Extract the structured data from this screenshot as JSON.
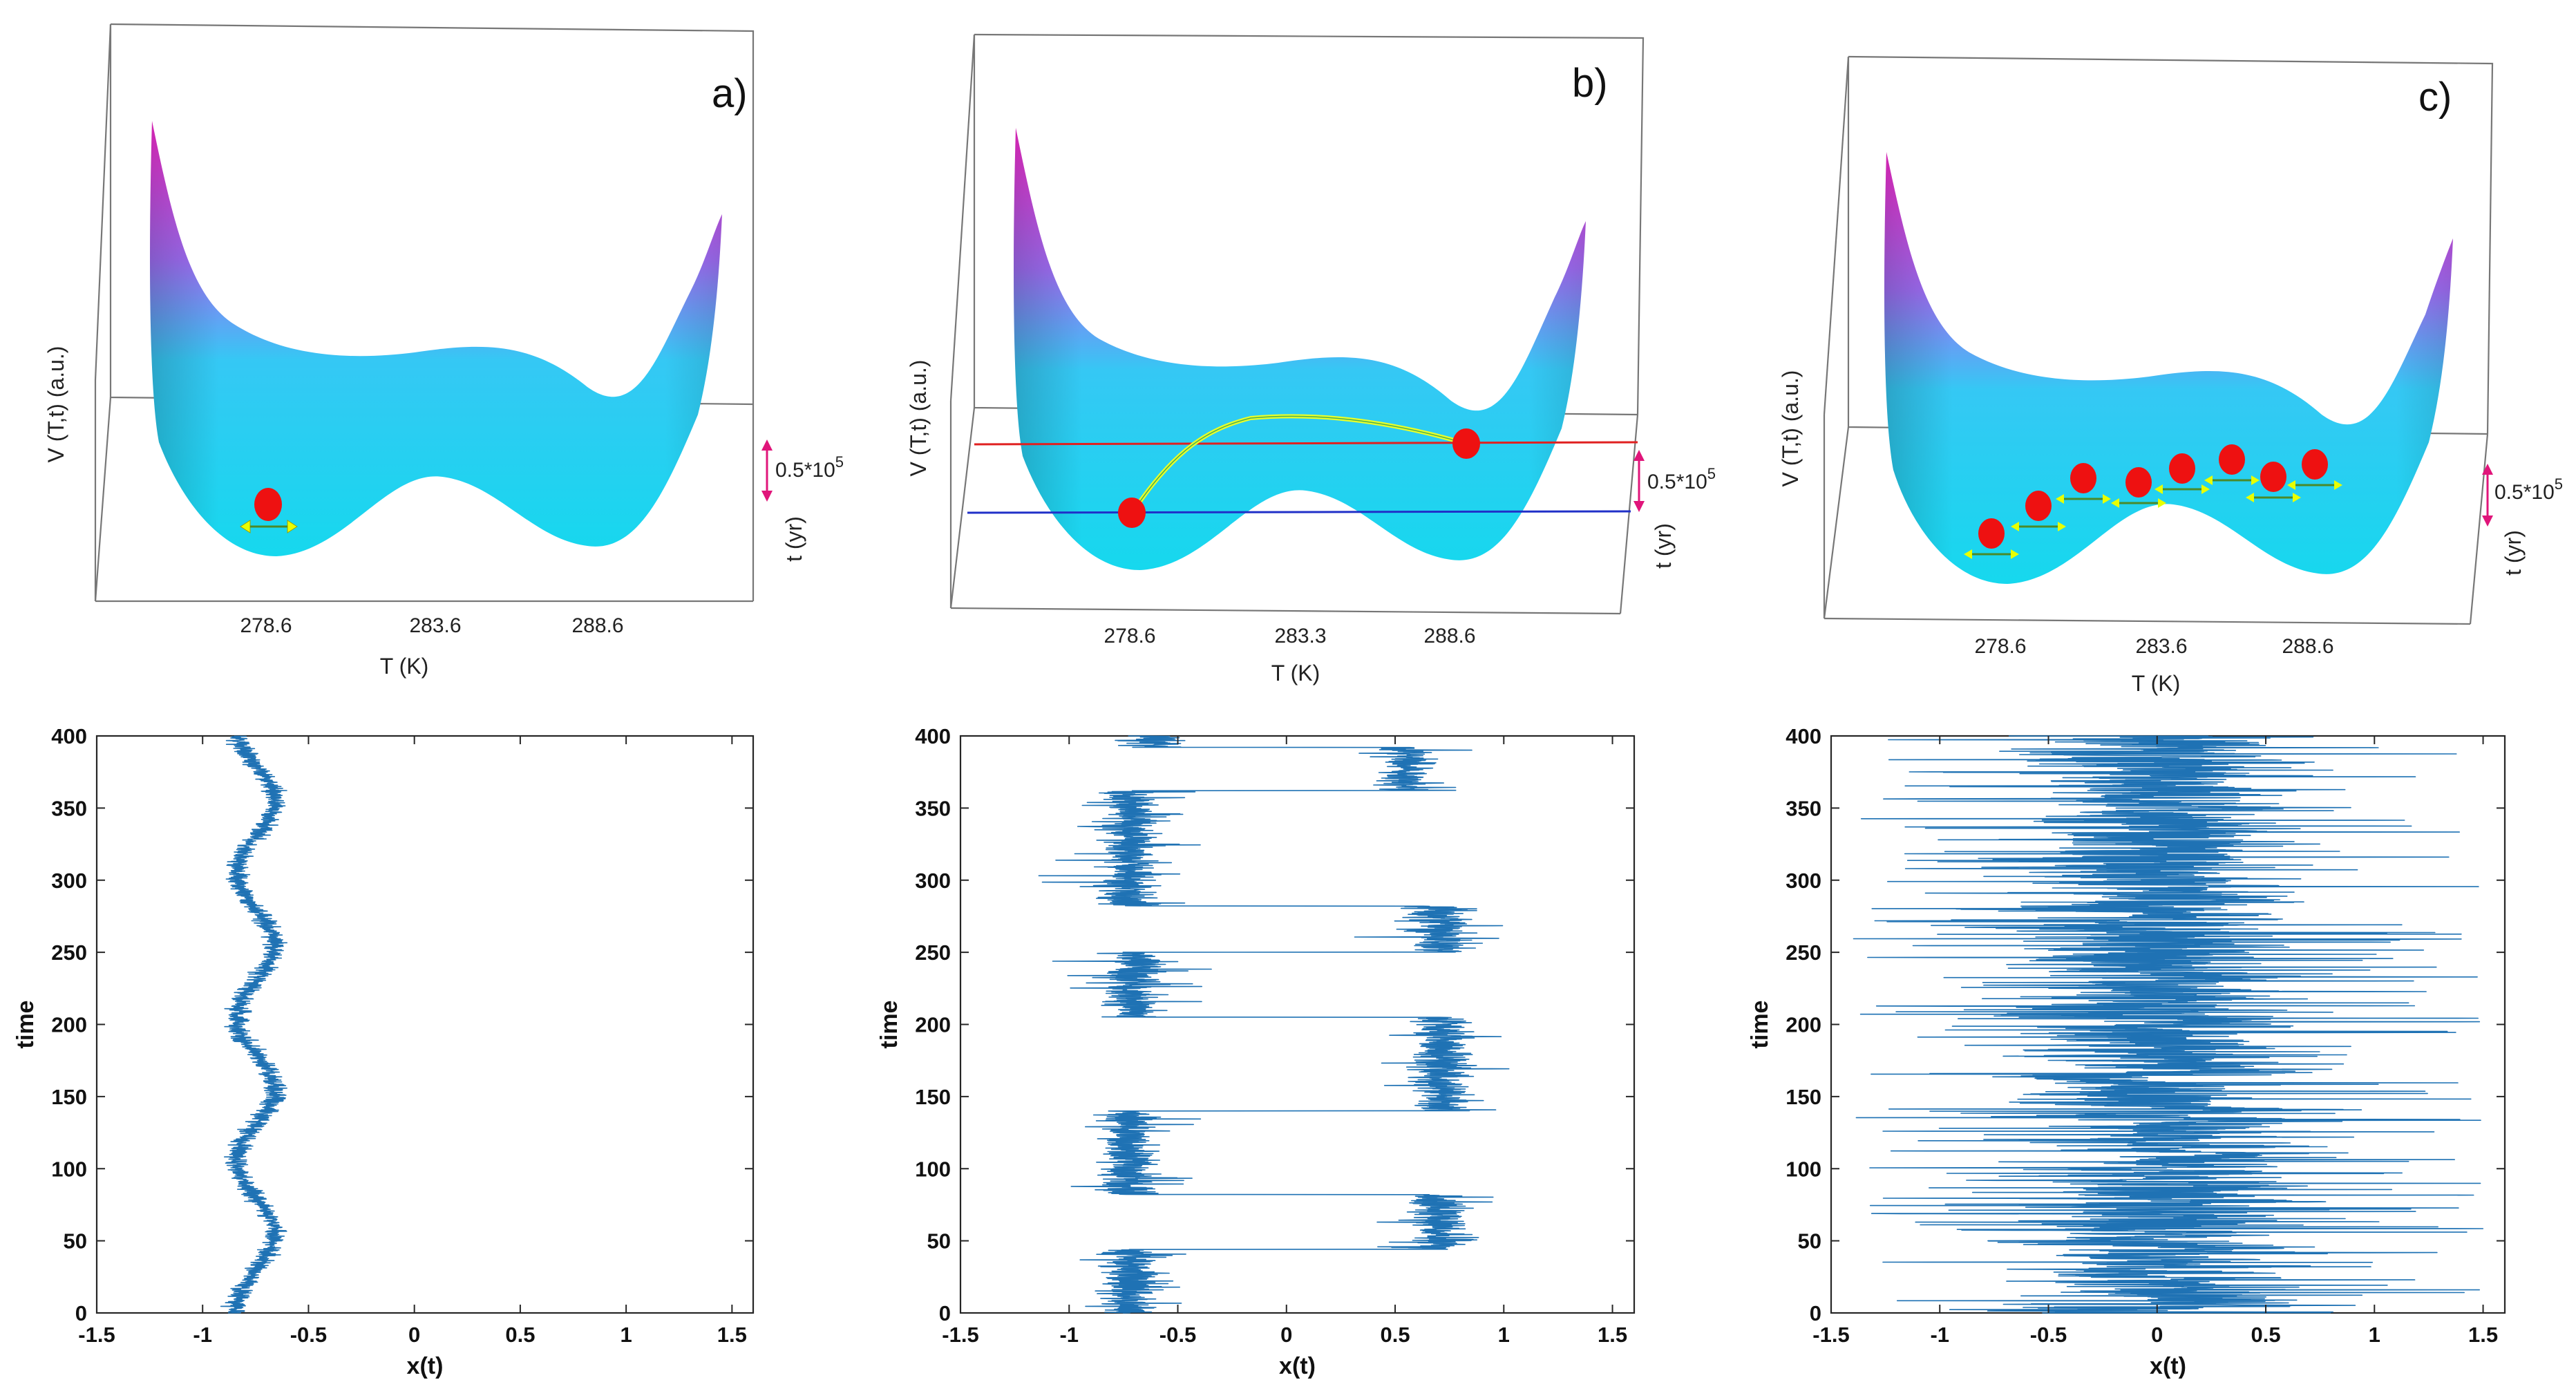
{
  "chart_data": [
    {
      "type": "surface",
      "panel": "a)",
      "xlabel": "T (K)",
      "ylabel": "V (T,t)  (a.u.)",
      "zlabel": "t (yr)",
      "time_scale_label": "0.5*10",
      "time_scale_exponent": "5",
      "x_ticks": [
        "278.6",
        "283.6",
        "288.6"
      ],
      "particles": [
        {
          "T": 278.6,
          "label": "single particle trapped in left well"
        }
      ],
      "colors": {
        "surface_low": "#22d8ee",
        "surface_high": "#ff2bd6",
        "particle": "#ee1111",
        "arrow": "#e8ff00",
        "scale_arrow": "#e0157a"
      }
    },
    {
      "type": "surface",
      "panel": "b)",
      "xlabel": "T (K)",
      "ylabel": "V (T,t)  (a.u.)",
      "zlabel": "t (yr)",
      "time_scale_label": "0.5*10",
      "time_scale_exponent": "5",
      "x_ticks": [
        "278.6",
        "283.3",
        "288.6"
      ],
      "particles": [
        {
          "T": 278.6
        },
        {
          "T": 288.6
        }
      ],
      "transition_path": true,
      "colors": {
        "path": "#e8ff2a",
        "line_warm": "#e02020",
        "line_cold": "#2030c8",
        "particle": "#ee1111"
      }
    },
    {
      "type": "surface",
      "panel": "c)",
      "xlabel": "T (K)",
      "ylabel": "V (T,t)  (a.u.)",
      "zlabel": "t (yr)",
      "time_scale_label": "0.5*10",
      "time_scale_exponent": "5",
      "x_ticks": [
        "278.6",
        "283.6",
        "288.6"
      ],
      "particles_count": 8
    },
    {
      "type": "line",
      "panel": "a",
      "title": "",
      "xlabel": "x(t)",
      "ylabel": "time",
      "xlim": [
        -1.5,
        1.6
      ],
      "ylim": [
        0,
        400
      ],
      "x_ticks": [
        "-1.5",
        "-1",
        "-0.5",
        "0",
        "0.5",
        "1",
        "1.5"
      ],
      "y_ticks": [
        "0",
        "50",
        "100",
        "150",
        "200",
        "250",
        "300",
        "350",
        "400"
      ],
      "series_color": "#1f72b4",
      "regime": "single well",
      "mean_x": -0.75,
      "oscillation_amplitude": 0.09,
      "oscillation_period": 100,
      "noise": 0.05
    },
    {
      "type": "line",
      "panel": "b",
      "xlabel": "x(t)",
      "ylabel": "time",
      "xlim": [
        -1.5,
        1.6
      ],
      "ylim": [
        0,
        400
      ],
      "x_ticks": [
        "-1.5",
        "-1",
        "-0.5",
        "0",
        "0.5",
        "1",
        "1.5"
      ],
      "y_ticks": [
        "0",
        "50",
        "100",
        "150",
        "200",
        "250",
        "300",
        "350",
        "400"
      ],
      "series_color": "#1f72b4",
      "regime": "periodic hopping",
      "segments": [
        {
          "t_start": 0,
          "t_end": 44,
          "center": -0.72
        },
        {
          "t_start": 44,
          "t_end": 82,
          "center": 0.7
        },
        {
          "t_start": 82,
          "t_end": 140,
          "center": -0.72
        },
        {
          "t_start": 140,
          "t_end": 205,
          "center": 0.72
        },
        {
          "t_start": 205,
          "t_end": 250,
          "center": -0.7
        },
        {
          "t_start": 250,
          "t_end": 282,
          "center": 0.72
        },
        {
          "t_start": 282,
          "t_end": 362,
          "center": -0.72
        },
        {
          "t_start": 362,
          "t_end": 392,
          "center": 0.55
        },
        {
          "t_start": 392,
          "t_end": 400,
          "center": -0.6
        }
      ],
      "noise": 0.13
    },
    {
      "type": "line",
      "panel": "c",
      "xlabel": "x(t)",
      "ylabel": "time",
      "xlim": [
        -1.5,
        1.6
      ],
      "ylim": [
        0,
        400
      ],
      "x_ticks": [
        "-1.5",
        "-1",
        "-0.5",
        "0",
        "0.5",
        "1",
        "1.5"
      ],
      "y_ticks": [
        "0",
        "50",
        "100",
        "150",
        "200",
        "250",
        "300",
        "350",
        "400"
      ],
      "series_color": "#1f72b4",
      "regime": "noise-dominated",
      "range": [
        -1.4,
        1.5
      ]
    }
  ]
}
